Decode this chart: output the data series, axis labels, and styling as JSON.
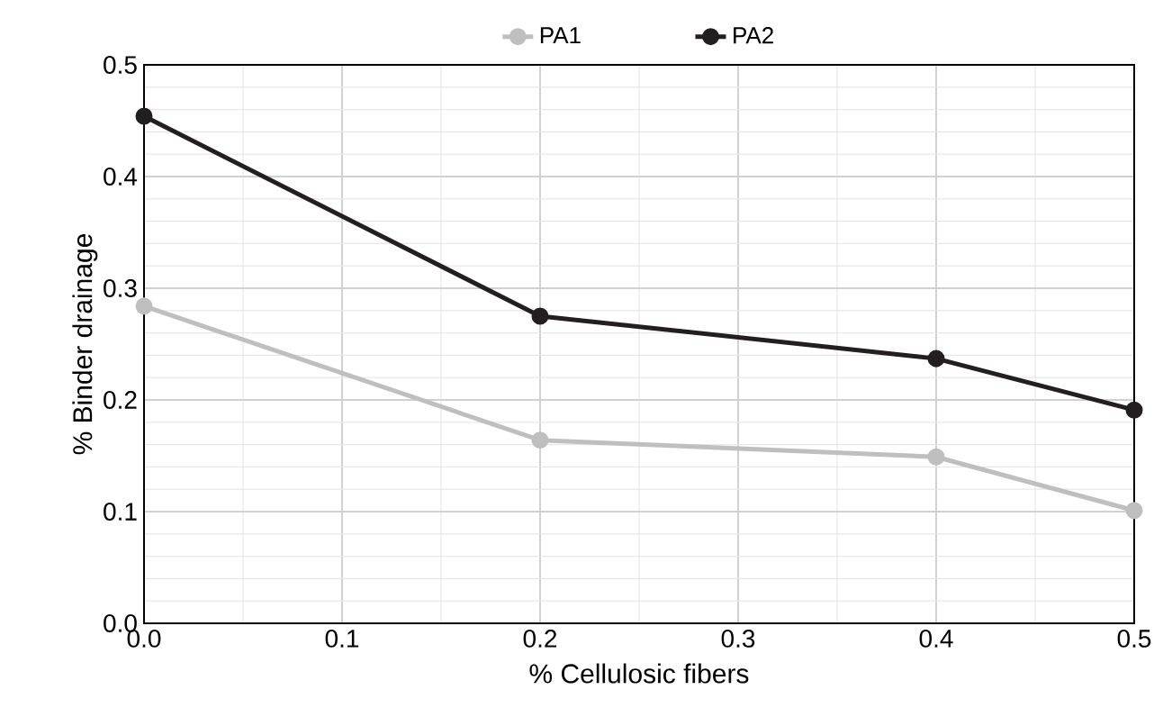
{
  "chart_data": {
    "type": "line",
    "xlabel": "% Cellulosic fibers",
    "ylabel": "% Binder drainage",
    "x": [
      0,
      0.2,
      0.4,
      0.5
    ],
    "series": [
      {
        "name": "PA1",
        "color": "#bfbfbf",
        "values": [
          0.284,
          0.164,
          0.149,
          0.101
        ]
      },
      {
        "name": "PA2",
        "color": "#231f20",
        "values": [
          0.454,
          0.275,
          0.237,
          0.191
        ]
      }
    ],
    "xlim": [
      0,
      0.5
    ],
    "ylim": [
      0,
      0.5
    ],
    "xticks": [
      {
        "value": 0,
        "label": "0.0"
      },
      0.1,
      0.2,
      0.3,
      0.4,
      0.5
    ],
    "yticks": [
      {
        "value": 0,
        "label": "0.0"
      },
      0.1,
      0.2,
      0.3,
      0.4,
      0.5
    ],
    "grid": true,
    "legend": "top",
    "marker": "circle",
    "line_style": "solid"
  }
}
